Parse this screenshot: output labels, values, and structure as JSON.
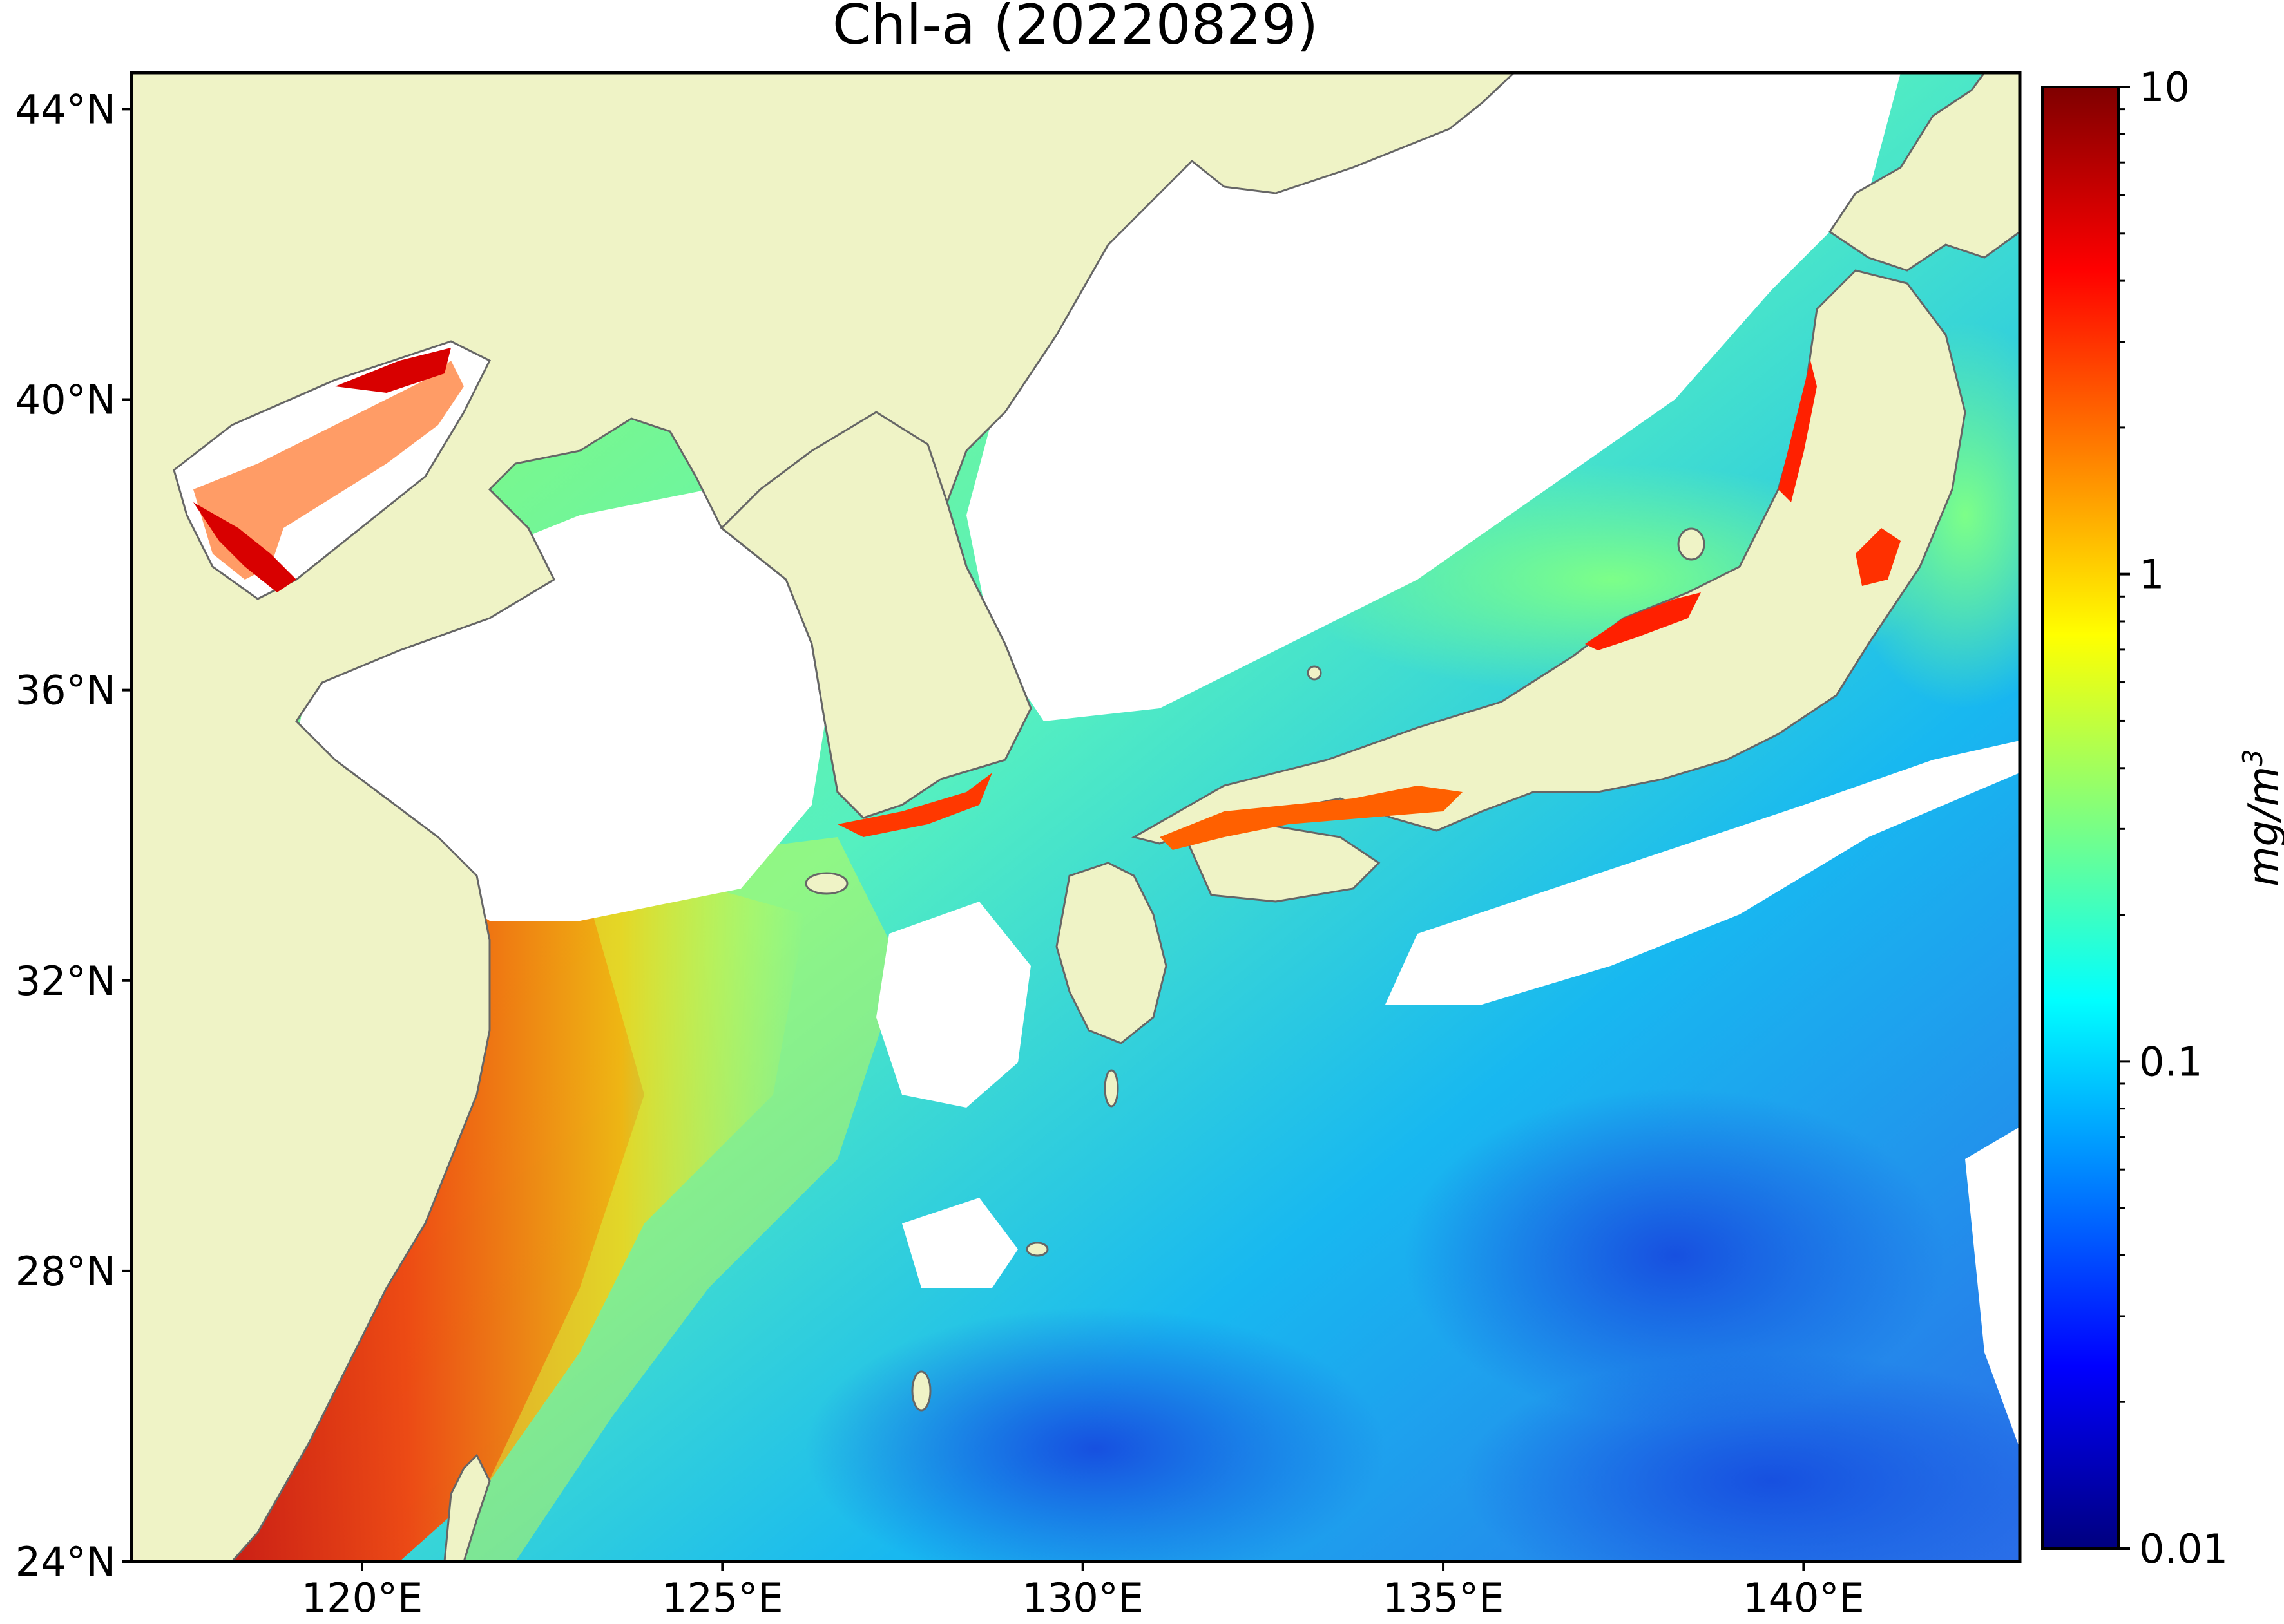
{
  "title": "Chl-a (20220829)",
  "map": {
    "lon_range": [
      116.8,
      143.0
    ],
    "lat_range": [
      24.0,
      44.5
    ],
    "land_color": "#eff3c6",
    "coast_color": "#666666",
    "cloud_color": "#ffffff",
    "lon_ticks": [
      {
        "value": 120,
        "label": "120°E"
      },
      {
        "value": 125,
        "label": "125°E"
      },
      {
        "value": 130,
        "label": "130°E"
      },
      {
        "value": 135,
        "label": "135°E"
      },
      {
        "value": 140,
        "label": "140°E"
      }
    ],
    "lat_ticks": [
      {
        "value": 44,
        "label": "44°N"
      },
      {
        "value": 40,
        "label": "40°N"
      },
      {
        "value": 36,
        "label": "36°N"
      },
      {
        "value": 32,
        "label": "32°N"
      },
      {
        "value": 28,
        "label": "28°N"
      },
      {
        "value": 24,
        "label": "24°N"
      }
    ]
  },
  "colorbar": {
    "label_text": "mg/m",
    "label_sup": "3",
    "scale": "log",
    "range": [
      0.01,
      10
    ],
    "major_ticks": [
      {
        "value": 10,
        "label": "10"
      },
      {
        "value": 1,
        "label": "1"
      },
      {
        "value": 0.1,
        "label": "0.1"
      },
      {
        "value": 0.01,
        "label": "0.01"
      }
    ],
    "colors": [
      "#00007f",
      "#0000ff",
      "#007fff",
      "#00ffff",
      "#7fff7f",
      "#ffff00",
      "#ff7f00",
      "#ff0000",
      "#7f0000"
    ]
  }
}
